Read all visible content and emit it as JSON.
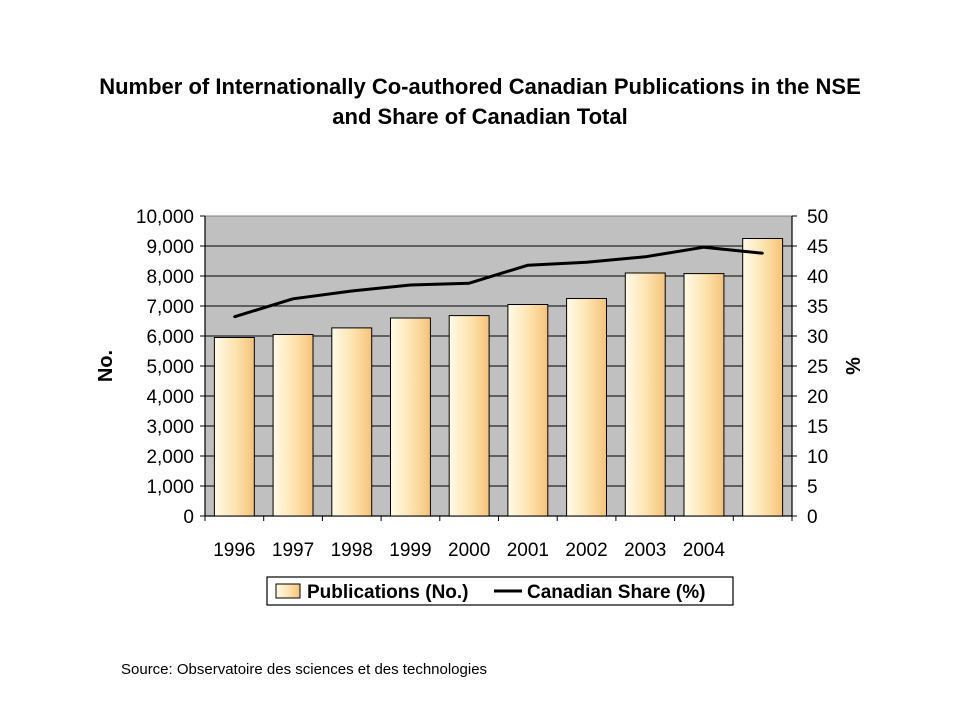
{
  "title_line1": "Number of Internationally Co-authored Canadian Publications in the NSE",
  "title_line2": "and Share of Canadian Total",
  "source": "Source: Observatoire des sciences et des technologies",
  "chart_data": {
    "type": "bar",
    "categories": [
      "1996",
      "1997",
      "1998",
      "1999",
      "2000",
      "2001",
      "2002",
      "2003",
      "2004",
      ""
    ],
    "series": [
      {
        "name": "Publications (No.)",
        "type": "bar",
        "axis": "left",
        "values": [
          5950,
          6050,
          6270,
          6600,
          6680,
          7050,
          7250,
          8100,
          8080,
          9250
        ]
      },
      {
        "name": "Canadian Share (%)",
        "type": "line",
        "axis": "right",
        "values": [
          33.2,
          36.2,
          37.5,
          38.5,
          38.8,
          41.8,
          42.3,
          43.2,
          44.8,
          43.8
        ]
      }
    ],
    "ylabel": "No.",
    "y2label": "%",
    "ylim": [
      0,
      10000
    ],
    "y2lim": [
      0,
      50
    ],
    "yticks": [
      "0",
      "1,000",
      "2,000",
      "3,000",
      "4,000",
      "5,000",
      "6,000",
      "7,000",
      "8,000",
      "9,000",
      "10,000"
    ],
    "y2ticks": [
      "0",
      "5",
      "10",
      "15",
      "20",
      "25",
      "30",
      "35",
      "40",
      "45",
      "50"
    ],
    "grid": true,
    "legend": "bottom",
    "colors": {
      "plot_bg": "#c0c0c0",
      "bar_light": "#fffbe8",
      "bar_dark": "#f5c27a",
      "line": "#000000"
    }
  }
}
